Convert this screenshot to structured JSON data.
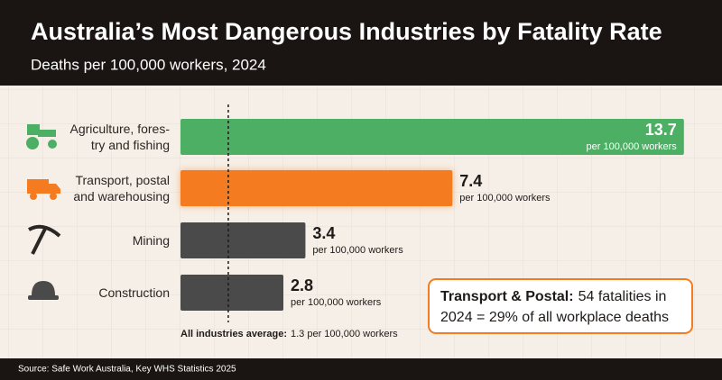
{
  "chart_data": {
    "type": "bar",
    "title": "Australia’s Most Dangerous Industries by Fatality Rate",
    "subtitle": "Deaths per 100,000 workers, 2024",
    "categories": [
      "Agriculture, fores-\ntry and fishing",
      "Transport, postal\nand warehousing",
      "Mining",
      "Construction"
    ],
    "values": [
      13.7,
      7.4,
      3.4,
      2.8
    ],
    "colors": [
      "#4caf63",
      "#f47b20",
      "#4a4a4a",
      "#4a4a4a"
    ],
    "unit_label": "per 100,000 workers",
    "xlim": [
      0,
      14
    ],
    "average": {
      "label": "All industries average:",
      "value": 1.3,
      "value_label": "1.3 per 100,000 workers"
    },
    "callout": {
      "title": "Transport & Postal:",
      "text": "54 fatalities in 2024 = 29% of all workplace deaths"
    },
    "source": "Source: Safe Work Australia, Key WHS Statistics 2025"
  }
}
